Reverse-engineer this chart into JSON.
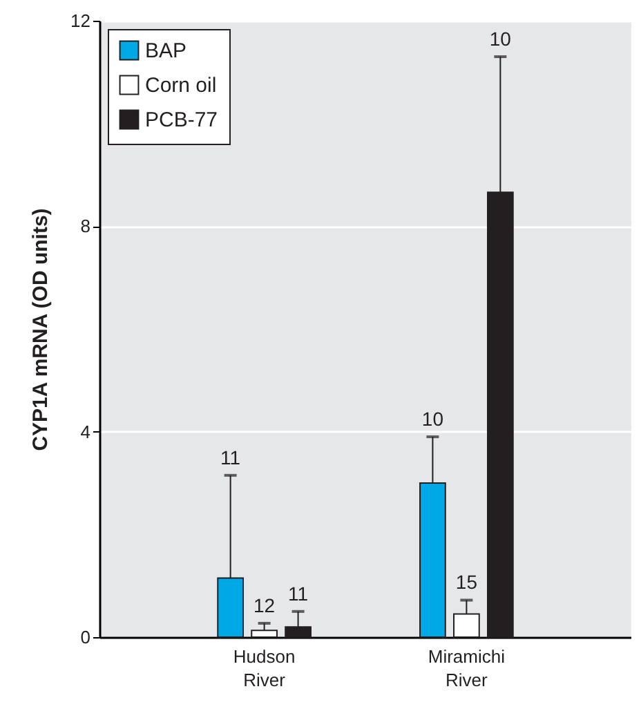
{
  "chart_data": {
    "type": "bar",
    "ylabel": "CYP1A mRNA (OD units)",
    "categories": [
      "Hudson River",
      "Miramichi River"
    ],
    "series": [
      {
        "name": "BAP",
        "color": "#00a9e6",
        "values": [
          1.15,
          3.0
        ],
        "errors": [
          [
            1.15,
            3.15
          ],
          [
            3.0,
            3.9
          ]
        ]
      },
      {
        "name": "Corn oil",
        "color": "#ffffff",
        "values": [
          0.13,
          0.45
        ],
        "errors": [
          [
            0.13,
            0.27
          ],
          [
            0.45,
            0.72
          ]
        ]
      },
      {
        "name": "PCB-77",
        "color": "#231f20",
        "values": [
          0.2,
          8.66
        ],
        "errors": [
          [
            0.2,
            0.5
          ],
          [
            8.66,
            11.3
          ]
        ]
      }
    ],
    "ylim": [
      0,
      12
    ],
    "yticks": [
      0,
      4,
      8,
      12
    ],
    "grid": "y",
    "legend": "top left",
    "annotations": [
      "11",
      "10",
      "12",
      "15",
      "11",
      "10"
    ]
  }
}
